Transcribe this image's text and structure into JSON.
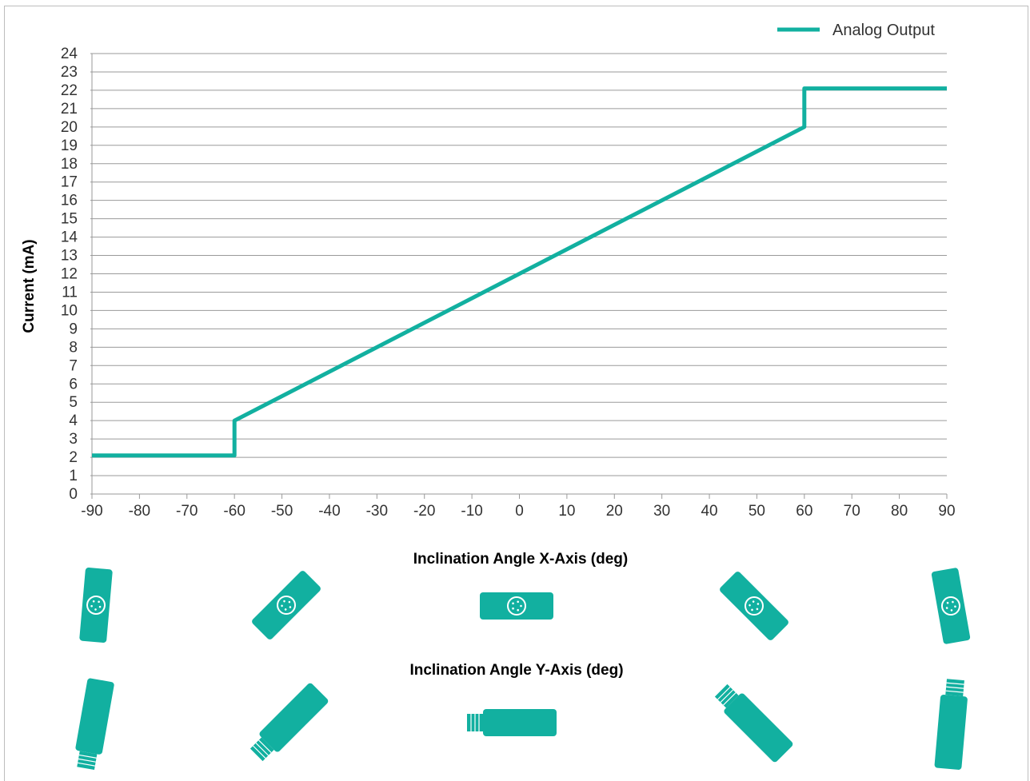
{
  "colors": {
    "series": "#12b0a0",
    "grid": "#9a9a9a",
    "device": "#12b0a0"
  },
  "chart_data": {
    "type": "line",
    "title": "",
    "xlabel": "Inclination Angle X-Axis (deg)",
    "ylabel": "Current (mA)",
    "secondary_label": "Inclination Angle Y-Axis (deg)",
    "xlim": [
      -90,
      90
    ],
    "ylim": [
      0,
      24
    ],
    "xticks": [
      "-90",
      "-80",
      "-70",
      "-60",
      "-50",
      "-40",
      "-30",
      "-20",
      "-10",
      "0",
      "10",
      "20",
      "30",
      "40",
      "50",
      "60",
      "70",
      "80",
      "90"
    ],
    "yticks": [
      "0",
      "1",
      "2",
      "3",
      "4",
      "5",
      "6",
      "7",
      "8",
      "9",
      "10",
      "11",
      "12",
      "13",
      "14",
      "15",
      "16",
      "17",
      "18",
      "19",
      "20",
      "21",
      "22",
      "23",
      "24"
    ],
    "grid": "horizontal",
    "legend_position": "top-right",
    "series": [
      {
        "name": "Analog Output",
        "points": [
          [
            -90,
            2.1
          ],
          [
            -60,
            2.1
          ],
          [
            -60,
            4
          ],
          [
            60,
            20
          ],
          [
            60,
            22.1
          ],
          [
            90,
            22.1
          ]
        ]
      }
    ]
  },
  "device_icons": {
    "x_axis_row": [
      {
        "angle_label": "-90",
        "icon": "sensor-face-icon",
        "rotation_deg": 95
      },
      {
        "angle_label": "-45",
        "icon": "sensor-face-icon",
        "rotation_deg": -45
      },
      {
        "angle_label": "0",
        "icon": "sensor-face-icon",
        "rotation_deg": 0
      },
      {
        "angle_label": "45",
        "icon": "sensor-face-icon",
        "rotation_deg": 45
      },
      {
        "angle_label": "90",
        "icon": "sensor-face-icon",
        "rotation_deg": 80
      }
    ],
    "y_axis_row": [
      {
        "angle_label": "-90",
        "icon": "sensor-connector-icon",
        "rotation_deg": -80
      },
      {
        "angle_label": "-45",
        "icon": "sensor-connector-icon",
        "rotation_deg": -45
      },
      {
        "angle_label": "0",
        "icon": "sensor-connector-icon",
        "rotation_deg": 0
      },
      {
        "angle_label": "45",
        "icon": "sensor-connector-icon",
        "rotation_deg": 45
      },
      {
        "angle_label": "90",
        "icon": "sensor-connector-icon",
        "rotation_deg": 95
      }
    ]
  }
}
